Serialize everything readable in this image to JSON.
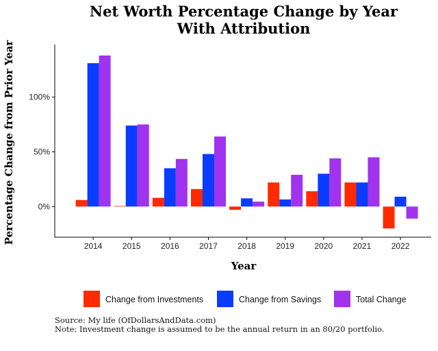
{
  "chart_data": {
    "type": "bar",
    "title": "Net Worth Percentage Change by Year",
    "subtitle": "With Attribution",
    "xlabel": "Year",
    "ylabel": "Percentage Change from Prior Year",
    "categories": [
      "2014",
      "2015",
      "2016",
      "2017",
      "2018",
      "2019",
      "2020",
      "2021",
      "2022"
    ],
    "series": [
      {
        "name": "Change from Investments",
        "color": "#ff2a00",
        "values": [
          6,
          0.5,
          8,
          16,
          -3,
          22,
          14,
          22,
          -20
        ]
      },
      {
        "name": "Change from Savings",
        "color": "#0a3cff",
        "values": [
          131,
          74,
          35,
          48,
          7.5,
          6.5,
          30,
          22,
          9
        ]
      },
      {
        "name": "Total Change",
        "color": "#a033ee",
        "values": [
          138,
          75,
          43.5,
          64,
          4.5,
          29,
          44,
          45,
          -11
        ]
      }
    ],
    "ylim": [
      -28,
      148
    ],
    "yticks": [
      0,
      50,
      100
    ],
    "ytick_labels": [
      "0%",
      "50%",
      "100%"
    ],
    "grid": false,
    "legend_position": "bottom"
  },
  "caption": {
    "source": "Source: My life (OfDollarsAndData.com)",
    "note": "Note: Investment change is assumed to be the annual return in an 80/20 portfolio."
  }
}
